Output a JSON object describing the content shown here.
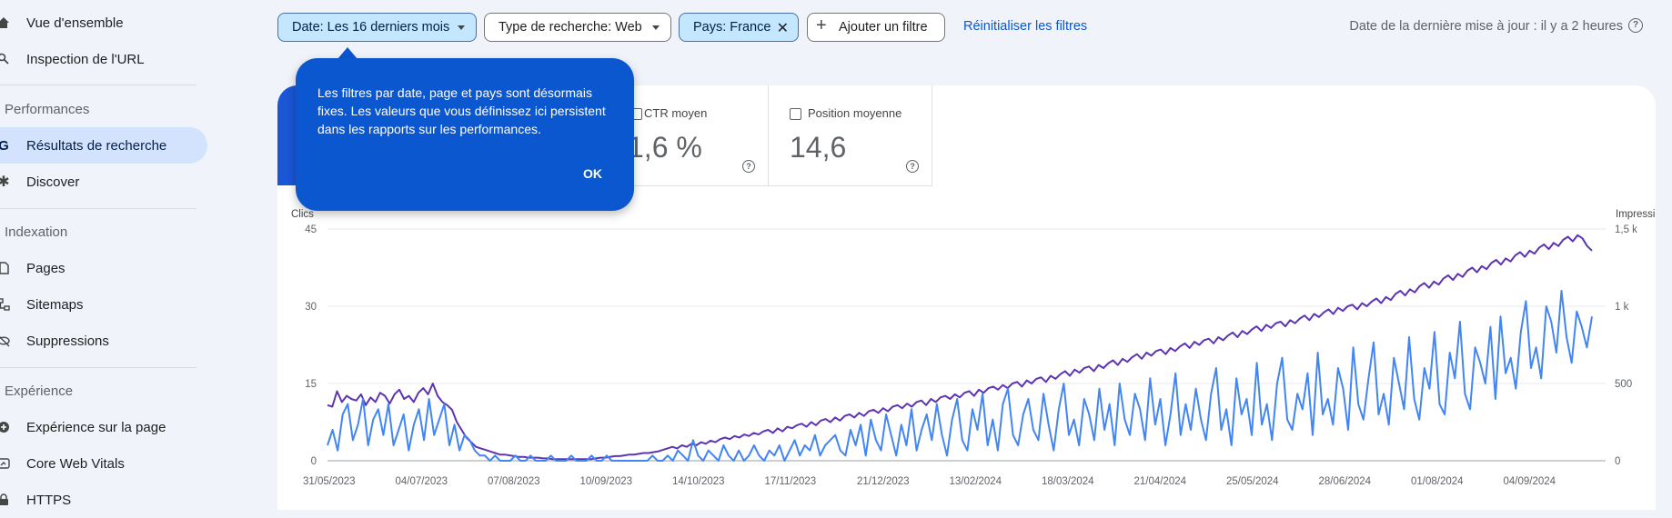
{
  "sidebar": {
    "top_items": [
      {
        "label": "Vue d'ensemble",
        "icon": "home-icon"
      },
      {
        "label": "Inspection de l'URL",
        "icon": "search-icon"
      }
    ],
    "sections": [
      {
        "title": "Performances",
        "items": [
          {
            "label": "Résultats de recherche",
            "icon": "google-g-icon",
            "active": true
          },
          {
            "label": "Discover",
            "icon": "asterisk-icon"
          }
        ]
      },
      {
        "title": "Indexation",
        "items": [
          {
            "label": "Pages",
            "icon": "page-icon"
          },
          {
            "label": "Sitemaps",
            "icon": "sitemap-icon"
          },
          {
            "label": "Suppressions",
            "icon": "eye-off-icon"
          }
        ]
      },
      {
        "title": "Expérience",
        "items": [
          {
            "label": "Expérience sur la page",
            "icon": "plus-circle-icon"
          },
          {
            "label": "Core Web Vitals",
            "icon": "gauge-icon"
          },
          {
            "label": "HTTPS",
            "icon": "lock-icon"
          }
        ]
      }
    ]
  },
  "filters": {
    "date": "Date: Les 16 derniers mois",
    "search_type": "Type de recherche: Web",
    "country": "Pays: France",
    "add_filter": "Ajouter un filtre",
    "reset": "Réinitialiser les filtres"
  },
  "last_update": "Date de la dernière mise à jour : il y a 2 heures",
  "metrics": [
    {
      "label": "CTR moyen",
      "value": "1,6 %"
    },
    {
      "label": "Position moyenne",
      "value": "14,6"
    }
  ],
  "tooltip": {
    "text": "Les filtres par date, page et pays sont désormais fixes. Les valeurs que vous définissez ici persistent dans les rapports sur les performances.",
    "ok": "OK"
  },
  "colors": {
    "clicks": "#4285f4",
    "impressions": "#5e35b1",
    "selected_chip": "#c2e7ff",
    "accent": "#0b57d0"
  },
  "chart_data": {
    "type": "line",
    "left_axis": {
      "title": "Clics",
      "ticks": [
        "45",
        "30",
        "15",
        "0"
      ],
      "range": [
        0,
        45
      ]
    },
    "right_axis": {
      "title": "Impressions",
      "ticks": [
        "1,5 k",
        "1 k",
        "500",
        "0"
      ],
      "range": [
        0,
        1500
      ]
    },
    "x_ticks": [
      "31/05/2023",
      "04/07/2023",
      "07/08/2023",
      "10/09/2023",
      "14/10/2023",
      "17/11/2023",
      "21/12/2023",
      "13/02/2024",
      "18/03/2024",
      "21/04/2024",
      "25/05/2024",
      "28/06/2024",
      "01/08/2024",
      "04/09/2024"
    ],
    "series": [
      {
        "name": "Clics",
        "axis": "left",
        "values": [
          3,
          6,
          2,
          9,
          11,
          4,
          7,
          12,
          3,
          8,
          10,
          5,
          11,
          3,
          6,
          9,
          2,
          7,
          10,
          4,
          12,
          5,
          8,
          11,
          3,
          7,
          2,
          5,
          4,
          2,
          1,
          1,
          0,
          1,
          0,
          0,
          0,
          1,
          0,
          0,
          1,
          0,
          0,
          0,
          1,
          0,
          0,
          0,
          1,
          0,
          0,
          0,
          1,
          0,
          0,
          1,
          0,
          0,
          0,
          0,
          0,
          0,
          0,
          0,
          1,
          0,
          0,
          1,
          0,
          2,
          1,
          0,
          4,
          1,
          0,
          2,
          1,
          0,
          3,
          1,
          0,
          2,
          0,
          1,
          3,
          1,
          0,
          2,
          1,
          3,
          0,
          2,
          4,
          1,
          3,
          2,
          5,
          1,
          3,
          4,
          5,
          2,
          1,
          6,
          3,
          7,
          1,
          8,
          4,
          2,
          9,
          5,
          1,
          7,
          3,
          10,
          2,
          6,
          9,
          4,
          11,
          5,
          1,
          8,
          12,
          4,
          2,
          10,
          6,
          13,
          3,
          8,
          2,
          11,
          14,
          5,
          3,
          9,
          12,
          6,
          4,
          13,
          7,
          2,
          10,
          15,
          5,
          8,
          3,
          12,
          9,
          4,
          14,
          6,
          11,
          3,
          15,
          8,
          5,
          13,
          10,
          4,
          16,
          7,
          12,
          3,
          9,
          17,
          5,
          11,
          6,
          14,
          8,
          4,
          13,
          18,
          6,
          10,
          3,
          16,
          9,
          12,
          5,
          19,
          7,
          11,
          4,
          15,
          20,
          8,
          6,
          13,
          10,
          17,
          5,
          21,
          9,
          12,
          7,
          18,
          14,
          6,
          22,
          11,
          8,
          16,
          23,
          9,
          13,
          7,
          20,
          15,
          10,
          24,
          12,
          8,
          18,
          14,
          25,
          11,
          9,
          21,
          16,
          27,
          13,
          10,
          22,
          19,
          15,
          26,
          12,
          28,
          17,
          20,
          14,
          25,
          31,
          18,
          22,
          16,
          30,
          27,
          21,
          33,
          24,
          19,
          29,
          26,
          22,
          28
        ]
      },
      {
        "name": "Impressions",
        "axis": "right",
        "values": [
          360,
          350,
          450,
          380,
          420,
          400,
          390,
          430,
          360,
          410,
          380,
          440,
          420,
          370,
          430,
          460,
          400,
          420,
          380,
          440,
          470,
          430,
          500,
          420,
          380,
          360,
          330,
          250,
          200,
          150,
          120,
          90,
          80,
          70,
          60,
          50,
          40,
          40,
          35,
          30,
          25,
          25,
          20,
          20,
          20,
          15,
          15,
          10,
          10,
          10,
          10,
          10,
          10,
          10,
          10,
          10,
          15,
          20,
          20,
          25,
          30,
          30,
          35,
          40,
          40,
          45,
          50,
          50,
          55,
          60,
          70,
          80,
          90,
          80,
          100,
          90,
          110,
          100,
          120,
          110,
          130,
          120,
          140,
          150,
          140,
          160,
          150,
          170,
          160,
          180,
          170,
          190,
          200,
          180,
          210,
          190,
          220,
          210,
          230,
          240,
          220,
          250,
          230,
          260,
          270,
          250,
          280,
          260,
          290,
          300,
          280,
          310,
          290,
          320,
          330,
          310,
          340,
          320,
          350,
          360,
          340,
          370,
          350,
          380,
          390,
          360,
          400,
          380,
          410,
          420,
          400,
          430,
          410,
          440,
          450,
          420,
          460,
          440,
          470,
          480,
          460,
          490,
          470,
          500,
          510,
          480,
          520,
          500,
          530,
          540,
          510,
          550,
          530,
          560,
          580,
          550,
          590,
          570,
          600,
          610,
          580,
          620,
          600,
          630,
          650,
          620,
          660,
          640,
          670,
          690,
          660,
          700,
          680,
          710,
          720,
          690,
          730,
          710,
          740,
          760,
          730,
          770,
          750,
          780,
          790,
          760,
          800,
          780,
          810,
          830,
          800,
          840,
          820,
          850,
          870,
          840,
          880,
          860,
          890,
          900,
          870,
          910,
          890,
          920,
          940,
          910,
          950,
          930,
          960,
          980,
          950,
          990,
          970,
          1000,
          1010,
          980,
          1020,
          1000,
          1030,
          1050,
          1020,
          1060,
          1040,
          1080,
          1100,
          1070,
          1110,
          1090,
          1130,
          1150,
          1120,
          1160,
          1140,
          1180,
          1200,
          1170,
          1210,
          1190,
          1230,
          1250,
          1220,
          1260,
          1240,
          1280,
          1300,
          1270,
          1310,
          1290,
          1330,
          1350,
          1320,
          1360,
          1340,
          1380,
          1400,
          1370,
          1410,
          1390,
          1430,
          1450,
          1420,
          1460,
          1440,
          1390,
          1360
        ]
      }
    ]
  }
}
